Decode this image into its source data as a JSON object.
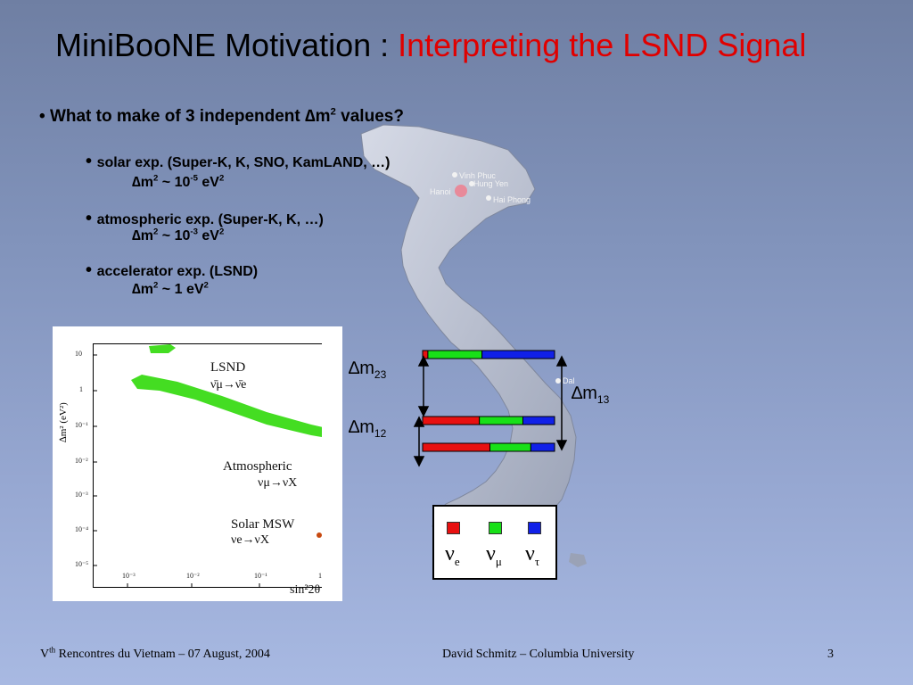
{
  "slide": {
    "title_main": "MiniBooNE Motivation : ",
    "title_highlight": "Interpreting the LSND Signal",
    "question_prefix": "What to make of 3 independent ",
    "question_dm": "∆m",
    "question_sup": "2",
    "question_suffix": " values?",
    "items": [
      {
        "label": "solar exp.  (Super-K, K, SNO, KamLAND, …)",
        "formula_a": "∆m",
        "sup1": "2",
        "formula_b": " ~ 10",
        "sup2": "-5",
        "formula_c": " eV",
        "sup3": "2"
      },
      {
        "label": "atmospheric exp.  (Super-K, K, …)",
        "formula_a": "∆m",
        "sup1": "2",
        "formula_b": " ~ 10",
        "sup2": "-3",
        "formula_c": " eV",
        "sup3": "2"
      },
      {
        "label": "accelerator exp.  (LSND)",
        "formula_a": "∆m",
        "sup1": "2",
        "formula_b": " ~ 1 eV",
        "sup2": "2"
      }
    ]
  },
  "map_labels": {
    "vinh_phuc": "Vinh Phuc",
    "hung_yen": "Hung Yen",
    "hanoi": "Hanoi",
    "hai_phong": "Hai Phong",
    "da_lat": "Dal"
  },
  "plot": {
    "y_axis_label": "∆m² (eV²)",
    "x_axis_label": "sin²2θ",
    "y_ticks": [
      "10",
      "1",
      "10⁻¹",
      "10⁻²",
      "10⁻³",
      "10⁻⁴",
      "10⁻⁵"
    ],
    "x_ticks": [
      "10⁻³",
      "10⁻²",
      "10⁻¹",
      "1"
    ],
    "lsnd_label": "LSND",
    "lsnd_sub": "ν̄μ→ν̄e",
    "atm_label": "Atmospheric",
    "atm_sub": "νμ→νX",
    "solar_label": "Solar MSW",
    "solar_sub": "νe→νX",
    "colors": {
      "lsnd": "#44dd22",
      "atm": "#1a3cc8",
      "solar": "#c84a10"
    }
  },
  "mass_diagram": {
    "dm23_main": "∆m",
    "dm23_sub": "23",
    "dm12_main": "∆m",
    "dm12_sub": "12",
    "dm13_main": "∆m",
    "dm13_sub": "13",
    "bars": [
      {
        "e": 0.04,
        "mu": 0.41,
        "tau": 0.55
      },
      {
        "e": 0.43,
        "mu": 0.33,
        "tau": 0.24
      },
      {
        "e": 0.51,
        "mu": 0.31,
        "tau": 0.18
      }
    ],
    "colors": {
      "e": "#e81010",
      "mu": "#18e018",
      "tau": "#1020e8"
    }
  },
  "legend": {
    "nu": "ν",
    "e": "e",
    "mu": "μ",
    "tau": "τ"
  },
  "footer": {
    "conf_v": "V",
    "conf_sup": "th",
    "conf_rest": " Rencontres du Vietnam – 07 August, 2004",
    "author": "David Schmitz – Columbia University",
    "page": "3"
  }
}
